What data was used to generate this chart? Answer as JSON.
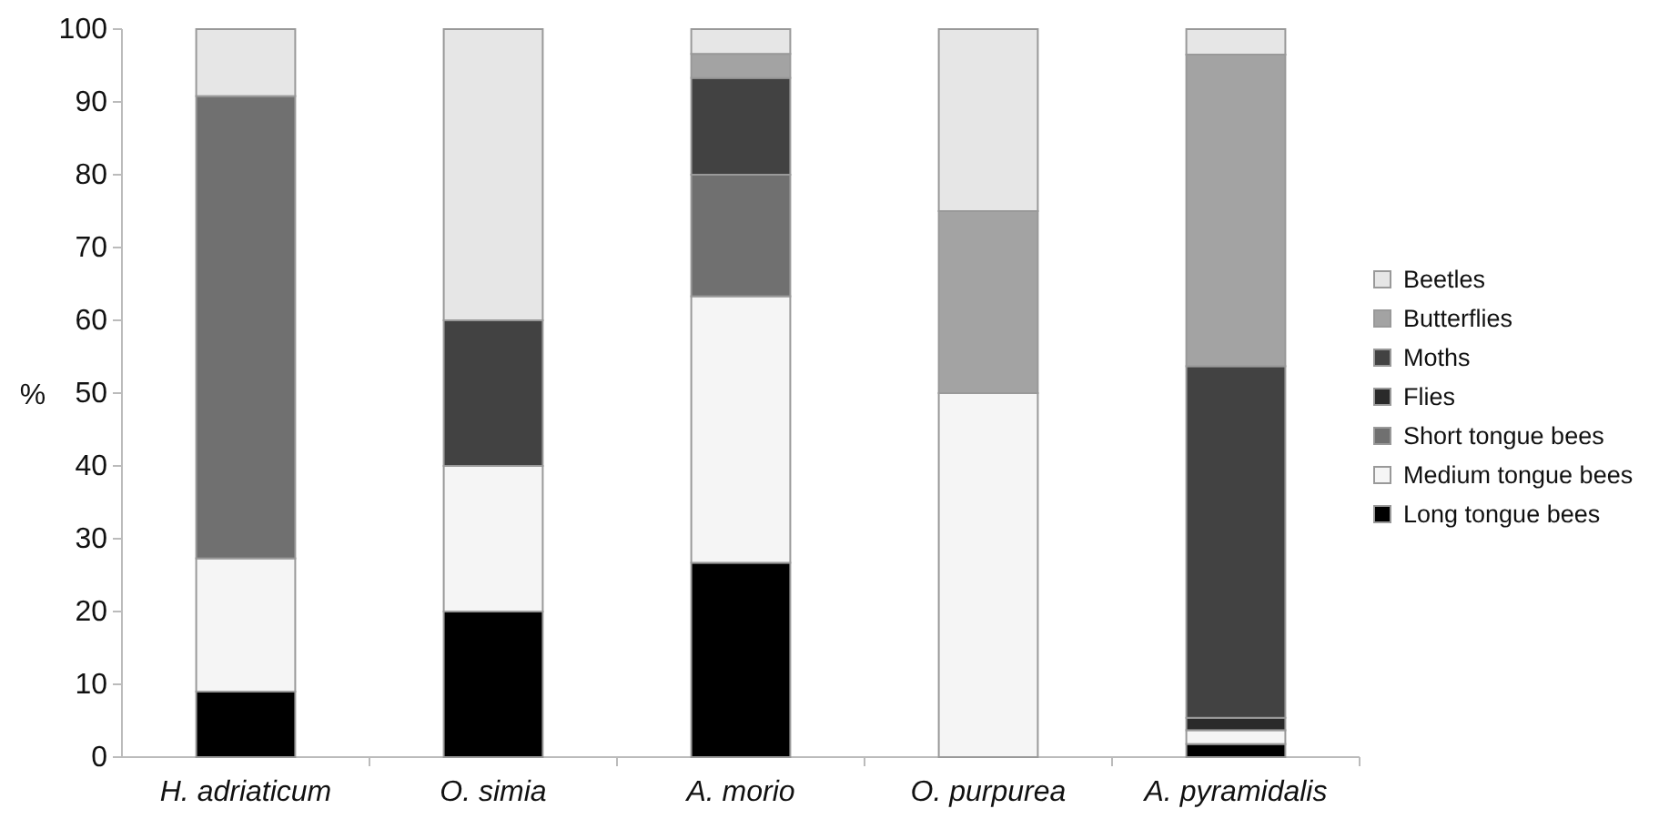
{
  "chart_data": {
    "type": "bar",
    "stacked": true,
    "ylabel": "%",
    "categories": [
      "H. adriaticum",
      "O. simia",
      "A. morio",
      "O. purpurea",
      "A. pyramidalis"
    ],
    "series": [
      {
        "name": "Long tongue bees",
        "color": "#000000",
        "values": [
          9,
          20,
          26.7,
          0,
          1.8
        ]
      },
      {
        "name": "Medium tongue bees",
        "color": "#f5f5f5",
        "values": [
          18.3,
          20,
          36.6,
          50,
          1.9
        ]
      },
      {
        "name": "Short tongue bees",
        "color": "#707070",
        "values": [
          63.5,
          0,
          16.7,
          0,
          0
        ]
      },
      {
        "name": "Flies",
        "color": "#2a2a2a",
        "values": [
          0,
          0,
          0,
          0,
          1.7
        ]
      },
      {
        "name": "Moths",
        "color": "#424242",
        "values": [
          0,
          20,
          13.3,
          0,
          48.3
        ]
      },
      {
        "name": "Butterflies",
        "color": "#a3a3a3",
        "values": [
          0,
          0,
          3.3,
          25,
          42.8
        ]
      },
      {
        "name": "Beetles",
        "color": "#e6e6e6",
        "values": [
          9.2,
          40,
          3.4,
          25,
          3.5
        ]
      }
    ],
    "ylim": [
      0,
      100
    ],
    "yticks": [
      0,
      10,
      20,
      30,
      40,
      50,
      60,
      70,
      80,
      90,
      100
    ],
    "grid": false,
    "legend": "right"
  }
}
